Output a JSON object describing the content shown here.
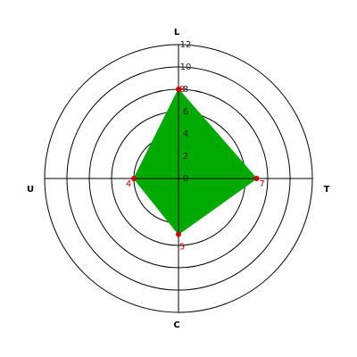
{
  "chart_data": {
    "type": "radar",
    "categories": [
      "L",
      "T",
      "C",
      "U"
    ],
    "values": [
      8,
      7,
      5,
      4
    ],
    "rlim": [
      0,
      12
    ],
    "rticks": [
      0,
      2,
      4,
      6,
      8,
      10,
      12
    ],
    "color": "#00aa00",
    "marker_color": "#cc0000",
    "grid": true
  }
}
